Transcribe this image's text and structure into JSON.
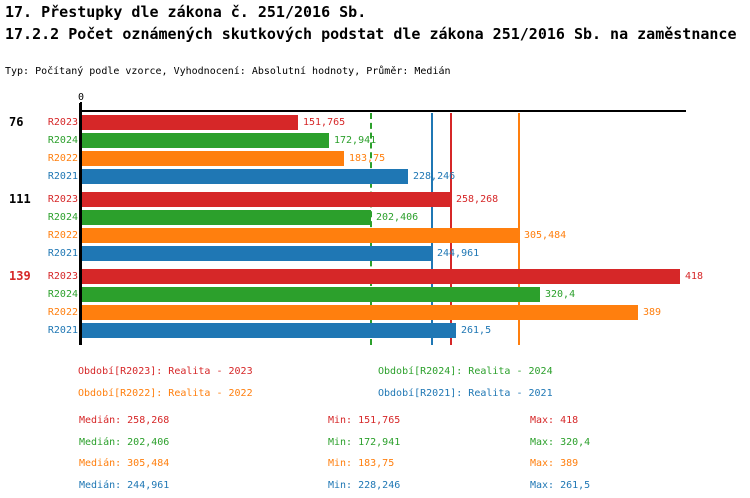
{
  "header": {
    "title_line1": "17. Přestupky dle zákona č. 251/2016 Sb.",
    "title_line2": "17.2.2 Počet oznámených skutkových podstat dle zákona 251/2016 Sb. na zaměstnance",
    "meta_line": "Typ: Počítaný podle vzorce, Vyhodnocení: Absolutní hodnoty, Průměr: Medián"
  },
  "colors": {
    "R2023": "#d62728",
    "R2024": "#2ca02c",
    "R2022": "#ff7f0e",
    "R2021": "#1f77b4",
    "axis": "#000000",
    "group_label_default": "#000000",
    "group_label_highlight": "#d62728"
  },
  "chart_data": {
    "type": "bar",
    "orientation": "horizontal",
    "title": "17.2.2 Počet oznámených skutkových podstat dle zákona 251/2016 Sb. na zaměstnance",
    "axis_origin_label": "0",
    "xlim": [
      0,
      422.3
    ],
    "grid": false,
    "series_order": [
      "R2023",
      "R2024",
      "R2022",
      "R2021"
    ],
    "groups": [
      {
        "label": "76",
        "label_color_key": "group_label_default",
        "bars": [
          {
            "series": "R2023",
            "value": 151.765,
            "value_label": "151,765"
          },
          {
            "series": "R2024",
            "value": 172.941,
            "value_label": "172,941"
          },
          {
            "series": "R2022",
            "value": 183.75,
            "value_label": "183,75"
          },
          {
            "series": "R2021",
            "value": 228.246,
            "value_label": "228,246"
          }
        ]
      },
      {
        "label": "111",
        "label_color_key": "group_label_default",
        "bars": [
          {
            "series": "R2023",
            "value": 258.268,
            "value_label": "258,268"
          },
          {
            "series": "R2024",
            "value": 202.406,
            "value_label": "202,406"
          },
          {
            "series": "R2022",
            "value": 305.484,
            "value_label": "305,484"
          },
          {
            "series": "R2021",
            "value": 244.961,
            "value_label": "244,961"
          }
        ]
      },
      {
        "label": "139",
        "label_color_key": "group_label_highlight",
        "bars": [
          {
            "series": "R2023",
            "value": 418,
            "value_label": "418"
          },
          {
            "series": "R2024",
            "value": 320.4,
            "value_label": "320,4"
          },
          {
            "series": "R2022",
            "value": 389,
            "value_label": "389"
          },
          {
            "series": "R2021",
            "value": 261.5,
            "value_label": "261,5"
          }
        ]
      }
    ],
    "median_lines": [
      {
        "series": "R2024",
        "value": 202.406,
        "style": "dashed"
      },
      {
        "series": "R2021",
        "value": 244.961,
        "style": "solid"
      },
      {
        "series": "R2023",
        "value": 258.268,
        "style": "solid"
      },
      {
        "series": "R2022",
        "value": 305.484,
        "style": "solid"
      }
    ],
    "legend_position": "bottom"
  },
  "legend": {
    "items": [
      {
        "series": "R2023",
        "text": "Období[R2023]: Realita - 2023"
      },
      {
        "series": "R2024",
        "text": "Období[R2024]: Realita - 2024"
      },
      {
        "series": "R2022",
        "text": "Období[R2022]: Realita - 2022"
      },
      {
        "series": "R2021",
        "text": "Období[R2021]: Realita - 2021"
      }
    ]
  },
  "stats": {
    "rows": [
      {
        "series": "R2023",
        "median": "Medián: 258,268",
        "min": "Min: 151,765",
        "max": "Max: 418"
      },
      {
        "series": "R2024",
        "median": "Medián: 202,406",
        "min": "Min: 172,941",
        "max": "Max: 320,4"
      },
      {
        "series": "R2022",
        "median": "Medián: 305,484",
        "min": "Min: 183,75",
        "max": "Max: 389"
      },
      {
        "series": "R2021",
        "median": "Medián: 244,961",
        "min": "Min: 228,246",
        "max": "Max: 261,5"
      }
    ]
  }
}
